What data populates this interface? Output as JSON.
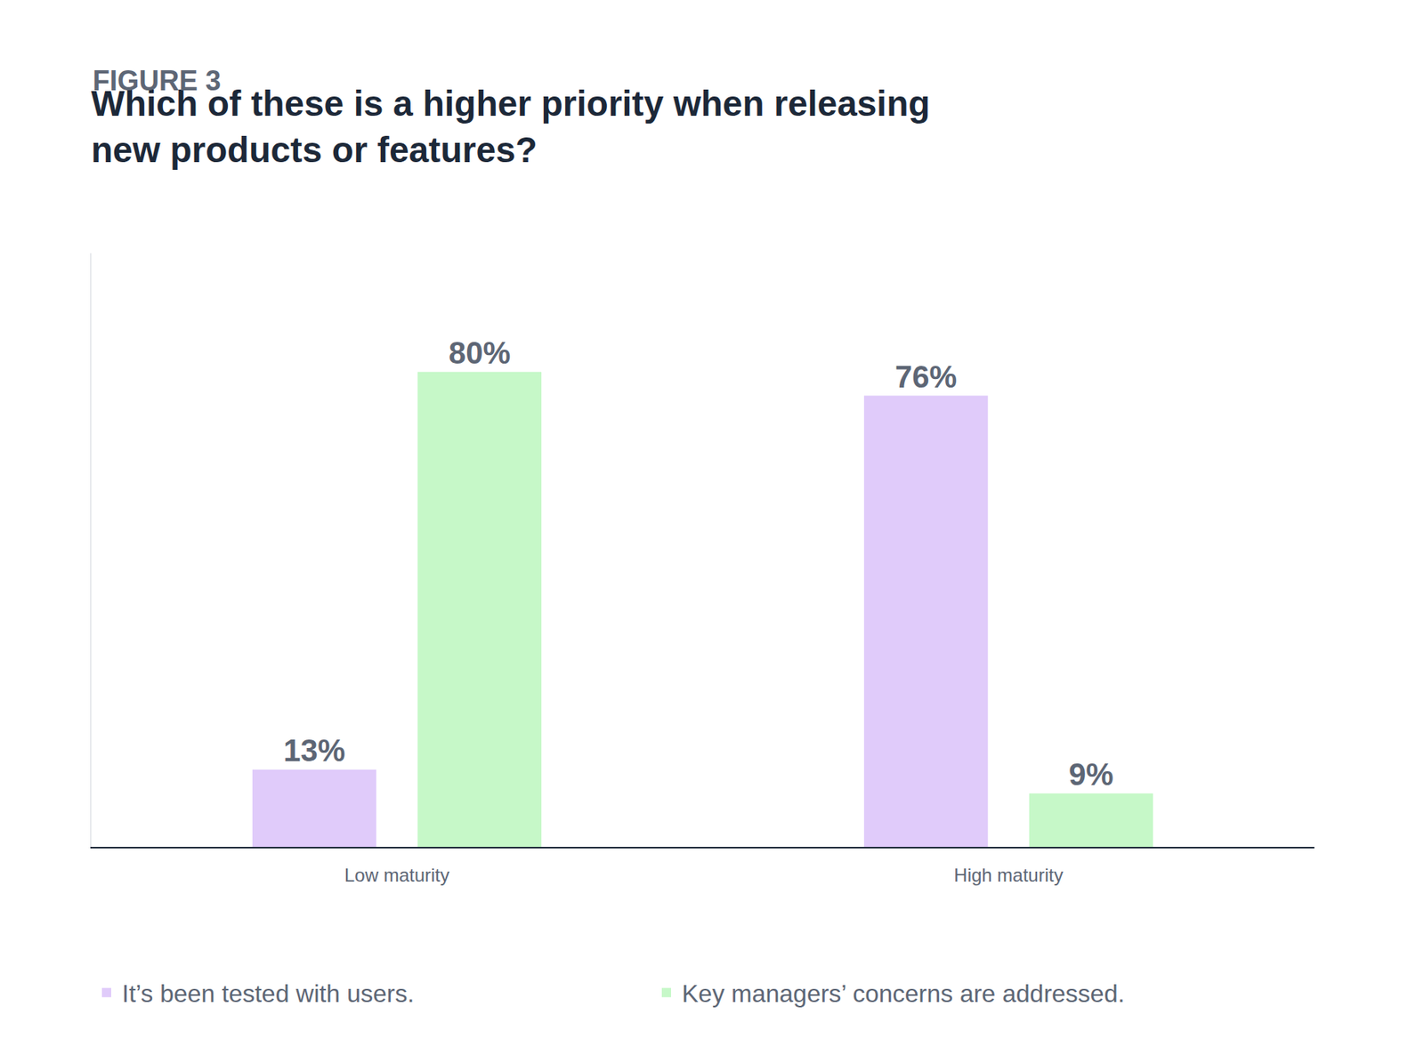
{
  "chart_data": {
    "type": "bar",
    "subtitle": "FIGURE 3",
    "title": "Which of these is a higher priority when releasing new products or features?",
    "categories": [
      "Low maturity",
      "High maturity"
    ],
    "series": [
      {
        "name": "It’s been tested with users.",
        "color": "#e0cbfa",
        "values": [
          13,
          76
        ],
        "value_labels": [
          "13%",
          "76%"
        ]
      },
      {
        "name": "Key managers’ concerns are addressed.",
        "color": "#c6f8c8",
        "values": [
          80,
          9
        ],
        "value_labels": [
          "80%",
          "9%"
        ]
      }
    ],
    "ylim": [
      0,
      100
    ],
    "grid": false,
    "legend": "bottom left",
    "data_labels": true,
    "tick_labels": "x"
  }
}
